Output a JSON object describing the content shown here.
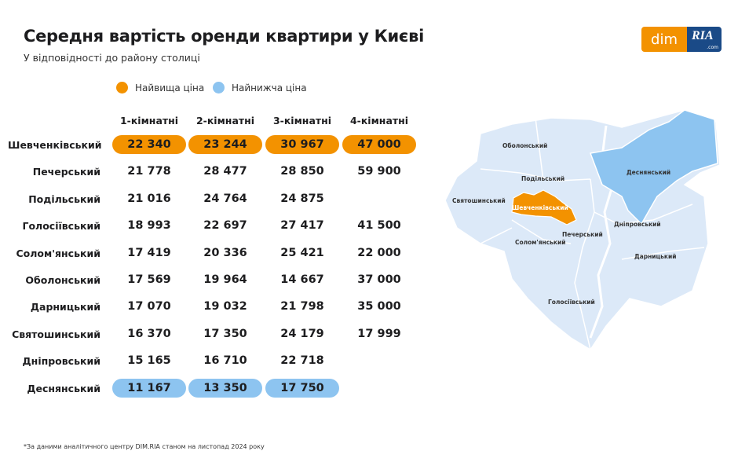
{
  "title": "Середня вартість оренди квартири у Києві",
  "subtitle": "У відповідності до району столиці",
  "logo": {
    "dim": "dim",
    "ria": "RIA",
    "com": ".com"
  },
  "legend": [
    {
      "label": "Найвища ціна",
      "color": "#f39200"
    },
    {
      "label": "Найнижча ціна",
      "color": "#8dc4f0"
    }
  ],
  "colors": {
    "high": "#f39200",
    "low": "#8dc4f0",
    "normal": "#e3eefb",
    "map_fill": "#dce9f8"
  },
  "chart_data": {
    "type": "table",
    "columns": [
      "1-кімнатні",
      "2-кімнатні",
      "3-кімнатні",
      "4-кімнатні"
    ],
    "rows": [
      {
        "district": "Шевченківський",
        "values": [
          "22 340",
          "23 244",
          "30 967",
          "47 000"
        ],
        "style": "high"
      },
      {
        "district": "Печерський",
        "values": [
          "21 778",
          "28 477",
          "28 850",
          "59 900"
        ],
        "style": "normal"
      },
      {
        "district": "Подільський",
        "values": [
          "21 016",
          "24 764",
          "24 875",
          ""
        ],
        "style": "normal"
      },
      {
        "district": "Голосіївський",
        "values": [
          "18 993",
          "22 697",
          "27 417",
          "41 500"
        ],
        "style": "normal"
      },
      {
        "district": "Солом'янський",
        "values": [
          "17 419",
          "20 336",
          "25 421",
          "22 000"
        ],
        "style": "normal"
      },
      {
        "district": "Оболонський",
        "values": [
          "17 569",
          "19 964",
          "14 667",
          "37 000"
        ],
        "style": "normal"
      },
      {
        "district": "Дарницький",
        "values": [
          "17 070",
          "19 032",
          "21 798",
          "35 000"
        ],
        "style": "normal"
      },
      {
        "district": "Святошинський",
        "values": [
          "16 370",
          "17 350",
          "24 179",
          "17 999"
        ],
        "style": "normal"
      },
      {
        "district": "Дніпровський",
        "values": [
          "15 165",
          "16 710",
          "22 718",
          ""
        ],
        "style": "normal"
      },
      {
        "district": "Деснянський",
        "values": [
          "11 167",
          "13 350",
          "17 750",
          ""
        ],
        "style": "low"
      }
    ]
  },
  "map": {
    "highlighted_high": "Шевченківський",
    "highlighted_low": "Деснянський",
    "labels": {
      "obolonskyi": "Оболонський",
      "podilskyi": "Подільський",
      "sviatoshynskyi": "Святошинський",
      "shevchenkivskyi": "Шевченківський",
      "desnianskyi": "Деснянський",
      "dniprovskyi": "Дніпровський",
      "pecherskyi": "Печерський",
      "solomianskyi": "Солом'янський",
      "darnytskyi": "Дарницький",
      "holosiivskyi": "Голосіївський"
    }
  },
  "footnote": "*За даними аналітичного центру DIM.RIA станом на листопад 2024 року"
}
